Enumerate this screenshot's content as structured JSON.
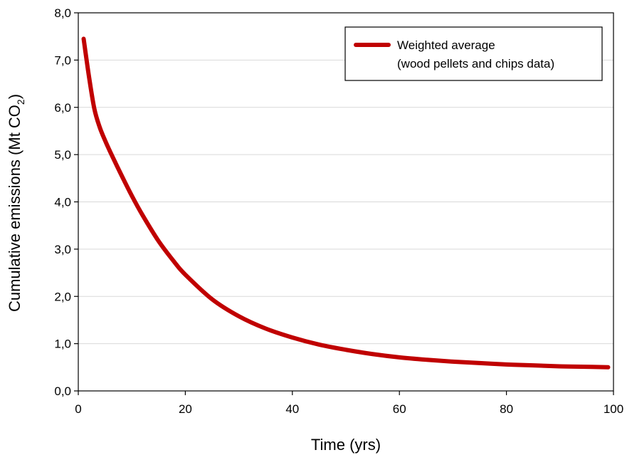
{
  "chart_data": {
    "type": "line",
    "xlabel": "Time (yrs)",
    "ylabel_main": "Cumulative emissions (Mt CO",
    "ylabel_sub": "2",
    "ylabel_close": ")",
    "xlim": [
      0,
      100
    ],
    "ylim": [
      0,
      8
    ],
    "x_ticks": [
      0,
      20,
      40,
      60,
      80,
      100
    ],
    "x_tick_labels": [
      "0",
      "20",
      "40",
      "60",
      "80",
      "100"
    ],
    "y_ticks": [
      0,
      1,
      2,
      3,
      4,
      5,
      6,
      7,
      8
    ],
    "y_tick_labels": [
      "0,0",
      "1,0",
      "2,0",
      "3,0",
      "4,0",
      "5,0",
      "6,0",
      "7,0",
      "8,0"
    ],
    "grid": "horizontal",
    "legend_position": "top-right",
    "legend_lines": [
      "Weighted average",
      "(wood pellets and chips data)"
    ],
    "line_color": "#c00000",
    "series": [
      {
        "name": "Weighted average (wood pellets and chips data)",
        "x": [
          1,
          2,
          3,
          4,
          5,
          6,
          8,
          10,
          12,
          15,
          18,
          20,
          25,
          30,
          35,
          40,
          45,
          50,
          55,
          60,
          65,
          70,
          75,
          80,
          85,
          90,
          95,
          99
        ],
        "y": [
          7.45,
          6.65,
          5.97,
          5.58,
          5.3,
          5.05,
          4.58,
          4.13,
          3.72,
          3.17,
          2.72,
          2.46,
          1.94,
          1.58,
          1.32,
          1.13,
          0.98,
          0.87,
          0.78,
          0.71,
          0.66,
          0.62,
          0.59,
          0.56,
          0.54,
          0.52,
          0.51,
          0.5
        ]
      }
    ]
  }
}
